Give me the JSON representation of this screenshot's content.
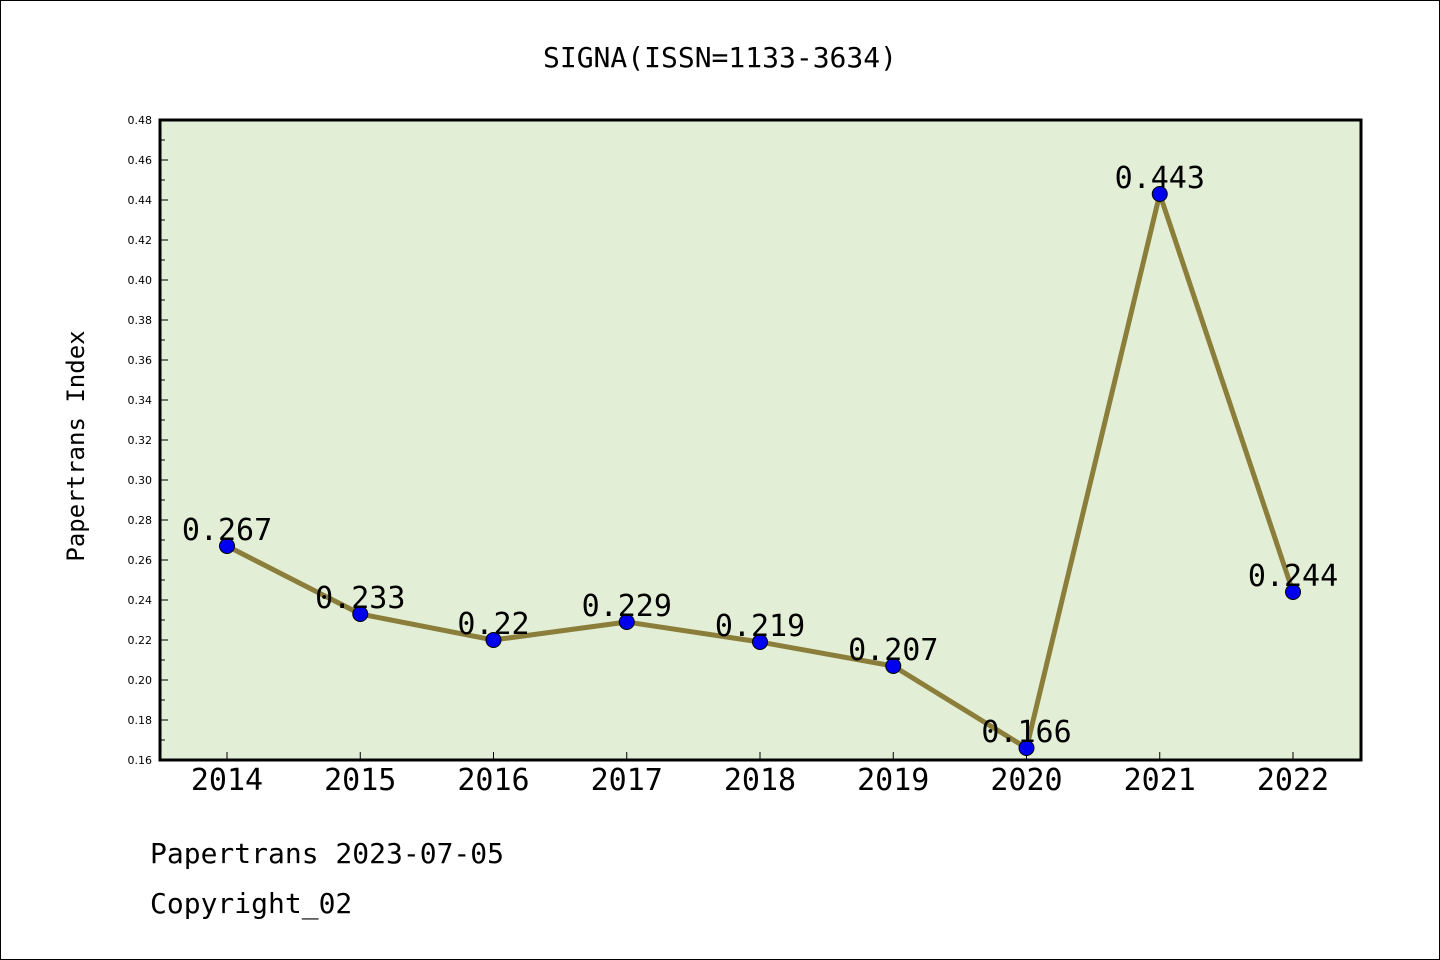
{
  "chart_data": {
    "type": "line",
    "title": "SIGNA(ISSN=1133-3634)",
    "ylabel": "Papertrans Index",
    "xlabel": "",
    "categories": [
      "2014",
      "2015",
      "2016",
      "2017",
      "2018",
      "2019",
      "2020",
      "2021",
      "2022"
    ],
    "series": [
      {
        "values": [
          0.267,
          0.233,
          0.22,
          0.229,
          0.219,
          0.207,
          0.166,
          0.443,
          0.244
        ],
        "labels": [
          "0.267",
          "0.233",
          "0.22",
          "0.229",
          "0.219",
          "0.207",
          "0.166",
          "0.443",
          "0.244"
        ]
      }
    ],
    "ylim": [
      0.16,
      0.48
    ],
    "yticks": [
      "0.16",
      "0.18",
      "0.20",
      "0.22",
      "0.24",
      "0.26",
      "0.28",
      "0.30",
      "0.32",
      "0.34",
      "0.36",
      "0.38",
      "0.40",
      "0.42",
      "0.44",
      "0.46",
      "0.48"
    ],
    "grid": false,
    "colors": {
      "plot_background": "#e2efd6",
      "line": "#8b7d3a",
      "marker": "#0000ee",
      "axes": "#000000"
    }
  },
  "footer": {
    "line1": "Papertrans 2023-07-05",
    "line2": "Copyright_02"
  }
}
